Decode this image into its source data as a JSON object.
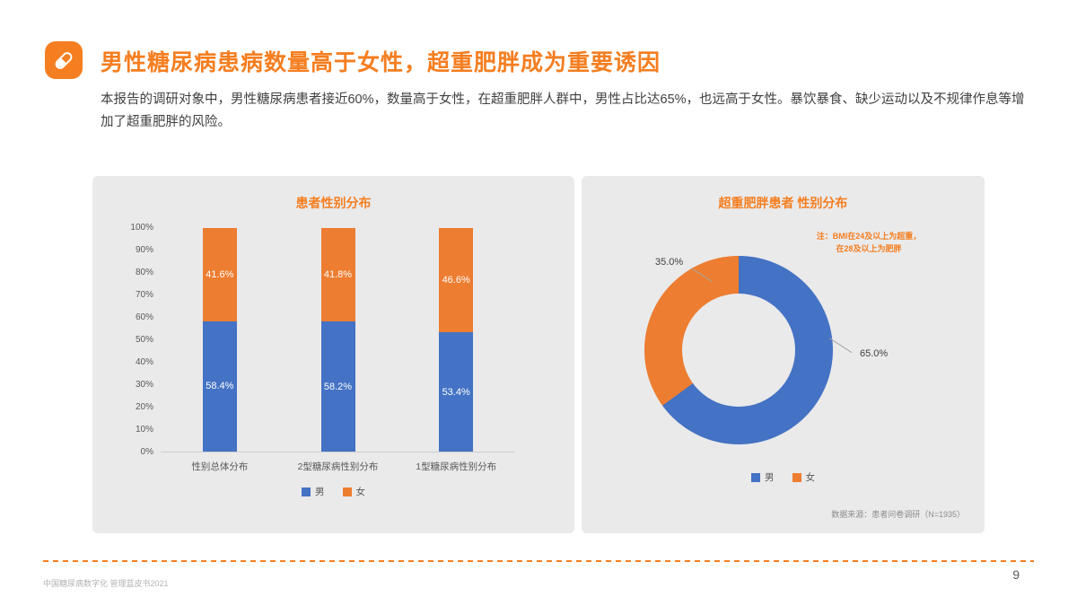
{
  "header": {
    "title": "男性糖尿病患病数量高于女性，超重肥胖成为重要诱因",
    "body": "本报告的调研对象中，男性糖尿病患者接近60%，数量高于女性，在超重肥胖人群中，男性占比达65%，也远高于女性。暴饮暴食、缺少运动以及不规律作息等增加了超重肥胖的风险。"
  },
  "footer": {
    "left": "中国糖尿病数字化 管理蓝皮书2021",
    "page_number": "9"
  },
  "colors": {
    "accent_orange": "#F57E20",
    "male_blue": "#4472C4",
    "female_orange": "#ED7D31",
    "panel_bg": "#EAEAEB"
  },
  "chart_data": [
    {
      "type": "bar",
      "stacked": true,
      "title": "患者性别分布",
      "categories": [
        "性别总体分布",
        "2型糖尿病性别分布",
        "1型糖尿病性别分布"
      ],
      "series": [
        {
          "name": "男",
          "color": "#4472C4",
          "values": [
            58.4,
            58.2,
            53.4
          ]
        },
        {
          "name": "女",
          "color": "#ED7D31",
          "values": [
            41.6,
            41.8,
            46.6
          ]
        }
      ],
      "xlabel": "",
      "ylabel": "",
      "ylim": [
        0,
        100
      ],
      "ytick_step": 10,
      "ytick_suffix": "%",
      "grid": false,
      "legend": [
        "男",
        "女"
      ],
      "legend_position": "bottom"
    },
    {
      "type": "pie",
      "donut": true,
      "title": "超重肥胖患者 性别分布",
      "labels": [
        "男",
        "女"
      ],
      "values": [
        65.0,
        35.0
      ],
      "colors": [
        "#4472C4",
        "#ED7D31"
      ],
      "value_labels": [
        "65.0%",
        "35.0%"
      ],
      "note": "注：BMI在24及以上为超重，\n在28及以上为肥胖",
      "source": "数据来源：患者问卷调研（N=1935）",
      "legend": [
        "男",
        "女"
      ],
      "legend_position": "bottom"
    }
  ]
}
